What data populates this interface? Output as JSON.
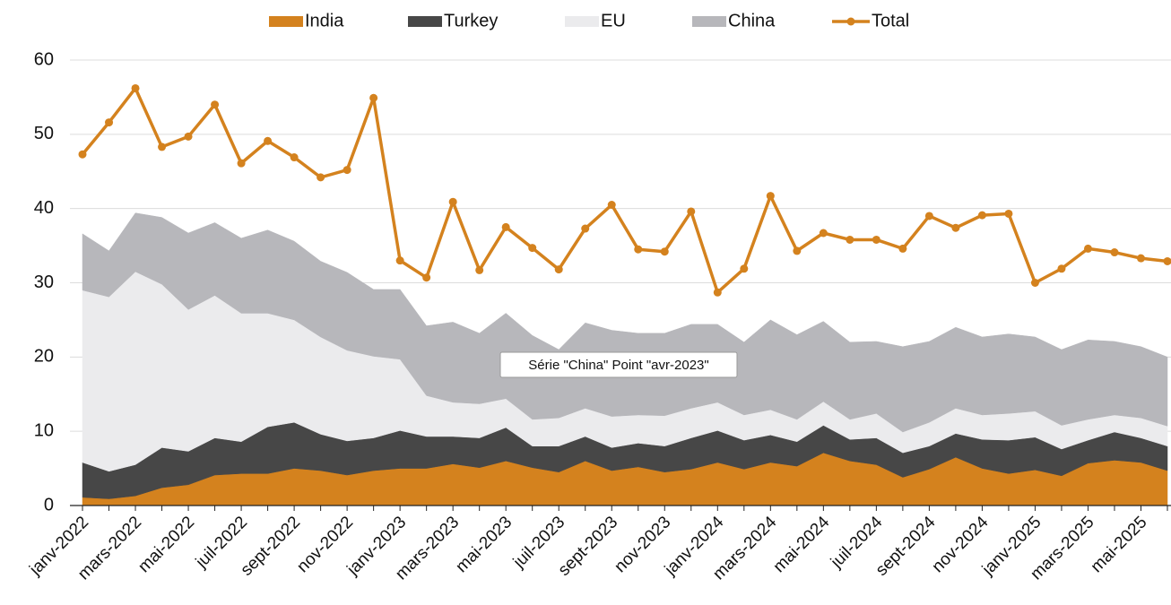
{
  "chart_data": {
    "type": "area",
    "stacked": true,
    "categories": [
      "janv-2022",
      null,
      "mars-2022",
      null,
      "mai-2022",
      null,
      "juil-2022",
      null,
      "sept-2022",
      null,
      "nov-2022",
      null,
      "janv-2023",
      null,
      "mars-2023",
      null,
      "mai-2023",
      null,
      "juil-2023",
      null,
      "sept-2023",
      null,
      "nov-2023",
      null,
      "janv-2024",
      null,
      "mars-2024",
      null,
      "mai-2024",
      null,
      "juil-2024",
      null,
      "sept-2024",
      null,
      "nov-2024",
      null,
      "janv-2025",
      null,
      "mars-2025",
      null,
      "mai-2025",
      null
    ],
    "series": [
      {
        "name": "India",
        "type": "area",
        "color": "#d4821e",
        "values": [
          1.1,
          0.9,
          1.3,
          2.4,
          2.8,
          4.1,
          4.3,
          4.3,
          5.0,
          4.7,
          4.1,
          4.7,
          5.0,
          5.0,
          5.6,
          5.1,
          6.0,
          5.1,
          4.5,
          6.0,
          4.7,
          5.2,
          4.5,
          4.9,
          5.8,
          4.9,
          5.8,
          5.3,
          7.1,
          6.0,
          5.5,
          3.8,
          4.9,
          6.5,
          5.0,
          4.3,
          4.8,
          4.0,
          5.7,
          6.1,
          5.8,
          4.7
        ]
      },
      {
        "name": "Turkey",
        "type": "area",
        "color": "#474747",
        "values": [
          4.7,
          3.7,
          4.2,
          5.4,
          4.5,
          5.0,
          4.3,
          6.3,
          6.2,
          4.9,
          4.6,
          4.4,
          5.1,
          4.3,
          3.7,
          4.0,
          4.5,
          2.9,
          3.5,
          3.3,
          3.1,
          3.2,
          3.5,
          4.2,
          4.3,
          3.9,
          3.7,
          3.3,
          3.7,
          2.9,
          3.6,
          3.3,
          3.1,
          3.2,
          3.9,
          4.5,
          4.4,
          3.6,
          3.1,
          3.8,
          3.3,
          3.3
        ]
      },
      {
        "name": "EU",
        "type": "area",
        "color": "#ebebed",
        "values": [
          23.2,
          23.5,
          26.0,
          22.0,
          19.1,
          19.2,
          17.3,
          15.3,
          13.8,
          13.1,
          12.2,
          11.0,
          9.6,
          5.5,
          4.6,
          4.6,
          3.9,
          3.6,
          3.8,
          3.8,
          4.2,
          3.8,
          4.1,
          4.0,
          3.8,
          3.4,
          3.4,
          3.0,
          3.2,
          2.7,
          3.3,
          2.8,
          3.2,
          3.4,
          3.3,
          3.6,
          3.5,
          3.2,
          2.8,
          2.3,
          2.7,
          2.7
        ]
      },
      {
        "name": "China",
        "type": "area",
        "color": "#b7b7bb",
        "values": [
          7.6,
          6.2,
          7.9,
          9.0,
          10.3,
          9.8,
          10.1,
          11.2,
          10.6,
          10.2,
          10.5,
          9.0,
          9.4,
          9.4,
          10.8,
          9.5,
          11.5,
          11.3,
          9.2,
          11.5,
          11.6,
          11.0,
          11.1,
          11.3,
          10.5,
          9.8,
          12.1,
          11.4,
          10.8,
          10.4,
          9.7,
          11.5,
          10.9,
          10.9,
          10.5,
          10.7,
          10.0,
          10.2,
          10.7,
          9.9,
          9.6,
          9.3
        ]
      },
      {
        "name": "Total",
        "type": "line",
        "color": "#d4821e",
        "values": [
          47.3,
          51.6,
          56.2,
          48.3,
          49.7,
          54.0,
          46.1,
          49.1,
          46.9,
          44.2,
          45.2,
          54.9,
          33.0,
          30.7,
          40.9,
          31.7,
          37.5,
          34.7,
          31.8,
          37.3,
          40.5,
          34.5,
          34.2,
          39.6,
          28.7,
          31.9,
          41.7,
          34.3,
          36.7,
          35.8,
          35.8,
          34.6,
          39.0,
          37.4,
          39.1,
          39.3,
          30.0,
          31.9,
          34.6,
          34.1,
          33.3,
          32.9
        ]
      }
    ],
    "ylim": [
      0,
      60
    ],
    "yticks": [
      0,
      10,
      20,
      30,
      40,
      50,
      60
    ],
    "grid": true,
    "legend": "top",
    "tooltip": "Série \"China\" Point \"avr-2023\""
  }
}
